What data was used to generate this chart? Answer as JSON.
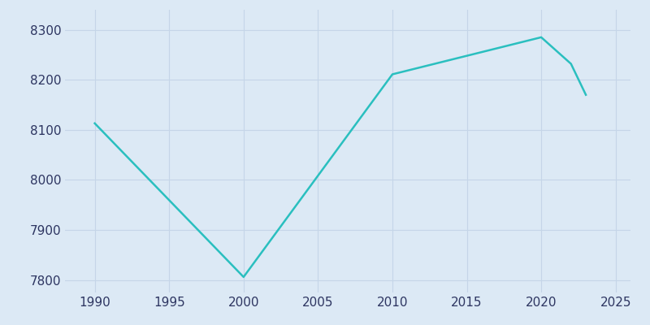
{
  "years": [
    1990,
    2000,
    2010,
    2015,
    2020,
    2022,
    2023
  ],
  "population": [
    8113,
    7806,
    8211,
    8248,
    8285,
    8232,
    8170
  ],
  "line_color": "#2abfbf",
  "axes_facecolor": "#dce9f5",
  "figure_facecolor": "#dce9f5",
  "grid_color": "#c5d5e8",
  "tick_color": "#2d3561",
  "xlim": [
    1988,
    2026
  ],
  "ylim": [
    7775,
    8340
  ],
  "xticks": [
    1990,
    1995,
    2000,
    2005,
    2010,
    2015,
    2020,
    2025
  ],
  "yticks": [
    7800,
    7900,
    8000,
    8100,
    8200,
    8300
  ],
  "linewidth": 1.8,
  "tick_fontsize": 11
}
